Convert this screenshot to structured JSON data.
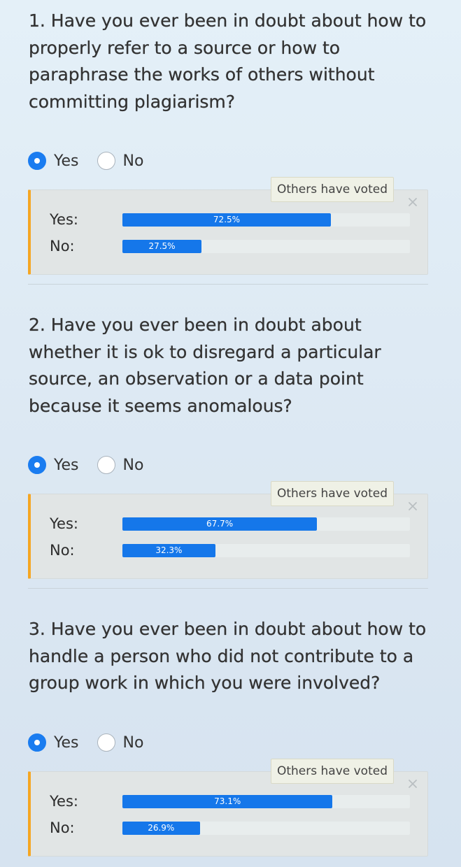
{
  "questions": [
    {
      "title": "1. Have you ever been in doubt about how to properly refer to a source or how to paraphrase the works of others without committing plagiarism?",
      "options": {
        "yes": "Yes",
        "no": "No"
      },
      "selected": "yes",
      "results": {
        "badge": "Others have voted",
        "yes": {
          "label": "Yes:",
          "percent_text": "72.5%",
          "fraction": 0.725
        },
        "no": {
          "label": "No:",
          "percent_text": "27.5%",
          "fraction": 0.275
        }
      }
    },
    {
      "title": "2. Have you ever been in doubt about whether it is ok to disregard a particular source, an observation or a data point because it seems anomalous?",
      "options": {
        "yes": "Yes",
        "no": "No"
      },
      "selected": "yes",
      "results": {
        "badge": "Others have voted",
        "yes": {
          "label": "Yes:",
          "percent_text": "67.7%",
          "fraction": 0.677
        },
        "no": {
          "label": "No:",
          "percent_text": "32.3%",
          "fraction": 0.323
        }
      }
    },
    {
      "title": "3. Have you ever been in doubt about how to handle a person who did not contribute to a group work in which you were involved?",
      "options": {
        "yes": "Yes",
        "no": "No"
      },
      "selected": "yes",
      "results": {
        "badge": "Others have voted",
        "yes": {
          "label": "Yes:",
          "percent_text": "73.1%",
          "fraction": 0.731
        },
        "no": {
          "label": "No:",
          "percent_text": "26.9%",
          "fraction": 0.269
        }
      }
    }
  ],
  "colors": {
    "accent": "#1577ea",
    "radio_selected": "#1a7cf0",
    "results_border": "#f5a623",
    "results_background": "#e1e5e5",
    "badge_background": "#eff1e6"
  }
}
